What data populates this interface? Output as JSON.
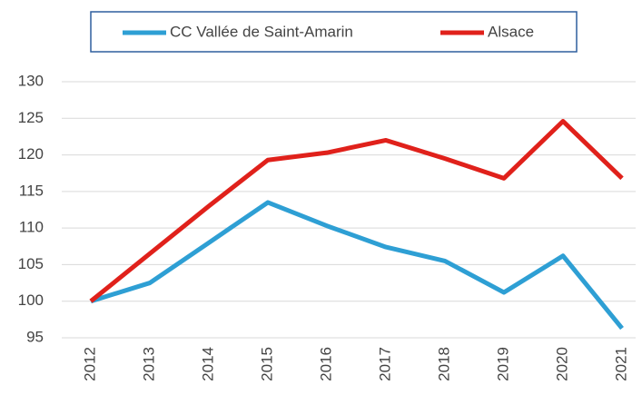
{
  "chart_data": {
    "type": "line",
    "categories": [
      "2012",
      "2013",
      "2014",
      "2015",
      "2016",
      "2017",
      "2018",
      "2019",
      "2020",
      "2021"
    ],
    "series": [
      {
        "name": "CC Vallée de Saint-Amarin",
        "color": "#2e9fd4",
        "values": [
          100,
          102.5,
          108,
          113.5,
          110.3,
          107.4,
          105.5,
          101.2,
          106.2,
          96.3
        ]
      },
      {
        "name": "Alsace",
        "color": "#e0211b",
        "values": [
          100,
          106.5,
          113,
          119.3,
          120.3,
          122,
          119.5,
          116.8,
          124.6,
          116.8
        ]
      }
    ],
    "ylim": [
      95,
      130
    ],
    "yticks": [
      95,
      100,
      105,
      110,
      115,
      120,
      125,
      130
    ],
    "grid": true,
    "legend": "top"
  }
}
